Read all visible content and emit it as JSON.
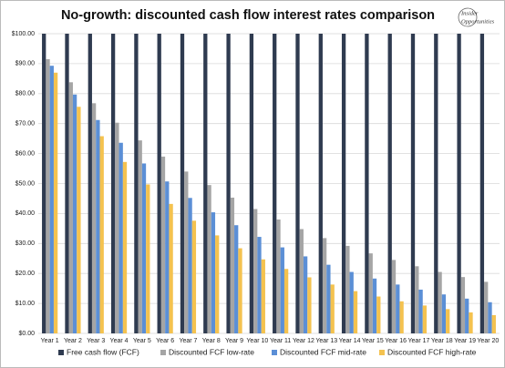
{
  "chart_data": {
    "type": "bar",
    "title": "No-growth: discounted cash flow interest rates comparison",
    "categories": [
      "Year 1",
      "Year 2",
      "Year 3",
      "Year 4",
      "Year 5",
      "Year 6",
      "Year 7",
      "Year 8",
      "Year 9",
      "Year 10",
      "Year 11",
      "Year 12",
      "Year 13",
      "Year 14",
      "Year 15",
      "Year 16",
      "Year 17",
      "Year 18",
      "Year 19",
      "Year 20"
    ],
    "series": [
      {
        "name": "Free cash flow (FCF)",
        "color": "#2f3b50",
        "values": [
          100,
          100,
          100,
          100,
          100,
          100,
          100,
          100,
          100,
          100,
          100,
          100,
          100,
          100,
          100,
          100,
          100,
          100,
          100,
          100
        ]
      },
      {
        "name": "Discounted FCF low-rate",
        "color": "#a5a5a5",
        "values": [
          91.5,
          83.8,
          76.8,
          70.3,
          64.4,
          59,
          54,
          49.5,
          45.3,
          41.5,
          38,
          34.8,
          31.8,
          29.2,
          26.7,
          24.5,
          22.4,
          20.5,
          18.8,
          17.2
        ]
      },
      {
        "name": "Discounted FCF mid-rate",
        "color": "#5b8fd6",
        "values": [
          89.3,
          79.7,
          71.2,
          63.6,
          56.7,
          50.7,
          45.2,
          40.4,
          36.1,
          32.2,
          28.7,
          25.7,
          22.9,
          20.5,
          18.3,
          16.3,
          14.6,
          13,
          11.6,
          10.4
        ]
      },
      {
        "name": "Discounted FCF high-rate",
        "color": "#f4c24f",
        "values": [
          87,
          75.6,
          65.8,
          57.2,
          49.7,
          43.2,
          37.6,
          32.7,
          28.4,
          24.7,
          21.5,
          18.7,
          16.3,
          14.1,
          12.3,
          10.7,
          9.3,
          8.1,
          7,
          6.1
        ]
      }
    ],
    "ylim": [
      0,
      100
    ],
    "yticks": [
      {
        "value": 0,
        "label": "$0.00"
      },
      {
        "value": 10,
        "label": "$10.00"
      },
      {
        "value": 20,
        "label": "$20.00"
      },
      {
        "value": 30,
        "label": "$30.00"
      },
      {
        "value": 40,
        "label": "$40.00"
      },
      {
        "value": 50,
        "label": "$50.00"
      },
      {
        "value": 60,
        "label": "$60.00"
      },
      {
        "value": 70,
        "label": "$70.00"
      },
      {
        "value": 80,
        "label": "$80.00"
      },
      {
        "value": 90,
        "label": "$90.00"
      },
      {
        "value": 100,
        "label": "$100.00"
      }
    ],
    "grid": true,
    "legend": "bottom"
  },
  "logo": [
    "Insider",
    "Opportunities"
  ]
}
